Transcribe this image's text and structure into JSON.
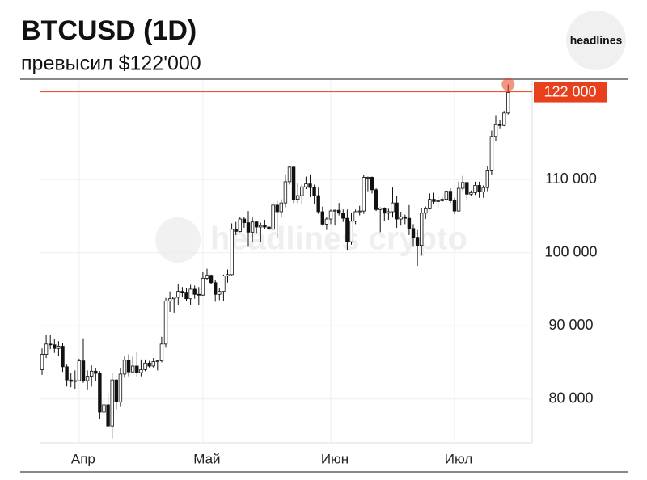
{
  "chart_data": {
    "type": "candlestick",
    "title": "BTCUSD (1D)",
    "subtitle": "превысил $122'000",
    "logo": "headlines",
    "watermark": "headlines crypto",
    "categories": [
      null,
      null,
      null,
      null,
      null,
      null,
      null,
      null,
      null,
      "Апр",
      null,
      null,
      null,
      null,
      null,
      null,
      null,
      null,
      null,
      null,
      null,
      null,
      null,
      null,
      null,
      null,
      null,
      null,
      null,
      null,
      null,
      null,
      null,
      null,
      null,
      null,
      null,
      null,
      null,
      "Май",
      null,
      null,
      null,
      null,
      null,
      null,
      null,
      null,
      null,
      null,
      null,
      null,
      null,
      null,
      null,
      null,
      null,
      null,
      null,
      null,
      null,
      null,
      null,
      null,
      null,
      null,
      null,
      null,
      null,
      null,
      "Июн",
      null,
      null,
      null,
      null,
      null,
      null,
      null,
      null,
      null,
      null,
      null,
      null,
      null,
      null,
      null,
      null,
      null,
      null,
      null,
      null,
      null,
      null,
      null,
      null,
      null,
      null,
      null,
      null,
      null,
      "Июл",
      null,
      null,
      null,
      null,
      null,
      null,
      null,
      null,
      null,
      null,
      null,
      null,
      null
    ],
    "open": [
      84000,
      86100,
      87500,
      87400,
      86900,
      87200,
      84400,
      82600,
      82400,
      82500,
      85200,
      82500,
      83100,
      83800,
      83500,
      78200,
      79200,
      76300,
      82600,
      79600,
      83400,
      85300,
      83700,
      84500,
      83600,
      84000,
      84900,
      84500,
      85100,
      85200,
      87500,
      93400,
      93700,
      93900,
      94700,
      94600,
      93700,
      95000,
      94300,
      94200,
      96500,
      96900,
      95900,
      94300,
      94700,
      96800,
      97000,
      103200,
      102900,
      104600,
      104100,
      102800,
      104200,
      103500,
      103700,
      103500,
      103200,
      106500,
      105600,
      106800,
      109700,
      111700,
      107300,
      107800,
      109000,
      109400,
      108900,
      107800,
      105600,
      103900,
      104600,
      105700,
      105800,
      105400,
      104700,
      101500,
      104300,
      105600,
      105700,
      110300,
      110300,
      108600,
      105900,
      106100,
      105400,
      105600,
      106800,
      104600,
      104900,
      104700,
      103300,
      102100,
      101000,
      105400,
      106000,
      107300,
      107000,
      107100,
      107300,
      108400,
      107100,
      105700,
      108800,
      109600,
      108000,
      108200,
      109200,
      108300,
      108900,
      111300,
      115900,
      117500,
      117400,
      119100
    ],
    "high": [
      86900,
      88700,
      88800,
      88200,
      87900,
      87600,
      84700,
      83500,
      83900,
      85500,
      88300,
      83900,
      84600,
      84200,
      83800,
      81200,
      80800,
      83500,
      82700,
      84200,
      85800,
      86100,
      85800,
      86400,
      85400,
      85400,
      85200,
      85600,
      85300,
      88500,
      93800,
      94700,
      94000,
      95700,
      95300,
      95100,
      95600,
      95500,
      95300,
      97400,
      97800,
      97000,
      96300,
      95200,
      97000,
      97700,
      104000,
      104200,
      104900,
      104900,
      105700,
      104900,
      104300,
      104100,
      104500,
      103700,
      107000,
      107100,
      107300,
      110700,
      111900,
      111800,
      109500,
      109300,
      110400,
      110700,
      109300,
      108900,
      106300,
      104900,
      105900,
      105900,
      106800,
      105900,
      105900,
      105500,
      105900,
      106400,
      110600,
      110400,
      110400,
      108800,
      106200,
      106200,
      106000,
      108900,
      107700,
      105600,
      105200,
      106500,
      103900,
      103100,
      106100,
      106300,
      108100,
      108200,
      107700,
      107600,
      108500,
      108800,
      107500,
      109700,
      110500,
      109700,
      108500,
      109700,
      109700,
      109200,
      111900,
      116700,
      118800,
      118200,
      119400,
      123000
    ],
    "low": [
      83300,
      85600,
      86800,
      86300,
      85900,
      83700,
      81700,
      81600,
      81300,
      82400,
      82200,
      81200,
      81700,
      82400,
      77300,
      74500,
      76200,
      74600,
      78600,
      78900,
      82900,
      83100,
      83600,
      83100,
      83100,
      83800,
      84300,
      84300,
      83900,
      85000,
      87000,
      91900,
      91800,
      92900,
      93900,
      93400,
      92900,
      93700,
      92900,
      94100,
      96300,
      95700,
      93300,
      93500,
      93400,
      95900,
      96900,
      102400,
      102800,
      103400,
      100800,
      101500,
      102700,
      101500,
      103200,
      102700,
      103000,
      102000,
      104800,
      106200,
      109300,
      106800,
      106800,
      106600,
      108700,
      107600,
      106700,
      105300,
      103700,
      103100,
      103900,
      103700,
      105100,
      104200,
      100400,
      101100,
      103900,
      105100,
      105300,
      108400,
      108100,
      105700,
      102800,
      104300,
      104500,
      104800,
      103400,
      103700,
      103900,
      102400,
      100800,
      98200,
      99600,
      104600,
      105900,
      106600,
      106200,
      106900,
      107100,
      106800,
      105300,
      105600,
      108500,
      107300,
      107800,
      107900,
      107500,
      107500,
      108400,
      110600,
      115300,
      116900,
      117300,
      118900
    ],
    "close": [
      86100,
      87500,
      87400,
      86900,
      87200,
      84400,
      82600,
      82400,
      82500,
      85200,
      82500,
      83100,
      83800,
      83500,
      78200,
      79200,
      76300,
      82600,
      79600,
      83400,
      85300,
      83700,
      84500,
      83600,
      84000,
      84900,
      84500,
      85100,
      85200,
      87500,
      93400,
      93700,
      93900,
      94700,
      94600,
      93700,
      95000,
      94300,
      94200,
      96500,
      96900,
      95900,
      94300,
      94700,
      96800,
      97000,
      103200,
      102900,
      104600,
      104100,
      102800,
      104200,
      103500,
      103700,
      103500,
      103200,
      106500,
      105600,
      106800,
      109700,
      111700,
      107300,
      107800,
      109000,
      109400,
      108900,
      107800,
      105600,
      103900,
      104600,
      105700,
      105800,
      105400,
      104700,
      101500,
      104300,
      105600,
      105700,
      110300,
      110300,
      108600,
      105900,
      106100,
      105400,
      105600,
      106800,
      104600,
      104900,
      104700,
      103300,
      102100,
      101000,
      105400,
      106000,
      107300,
      107000,
      107100,
      107300,
      108400,
      107100,
      105700,
      108800,
      109600,
      108000,
      108200,
      109200,
      108300,
      108900,
      111300,
      115900,
      117500,
      117400,
      119100,
      121900
    ],
    "up_color": "#ffffff",
    "down_color": "#111111",
    "ylim": [
      74000,
      123500
    ],
    "yticks": [
      {
        "value": 80000,
        "label": "80 000"
      },
      {
        "value": 90000,
        "label": "90 000"
      },
      {
        "value": 100000,
        "label": "100 000"
      },
      {
        "value": 110000,
        "label": "110 000"
      }
    ],
    "price_line": {
      "value": 122000,
      "label": "122 000",
      "color": "#e8401c"
    },
    "grid": true
  }
}
